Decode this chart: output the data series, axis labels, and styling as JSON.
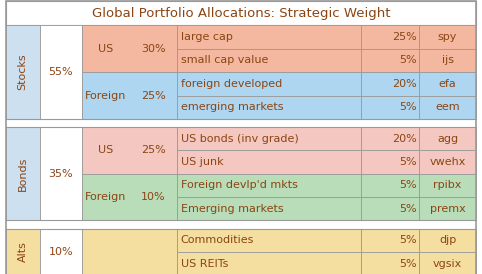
{
  "title": "Global Portfolio Allocations: Strategic Weight",
  "text_color": "#8B4513",
  "border_color": "#999999",
  "font_size": 8.0,
  "title_font_size": 9.5,
  "sections": [
    {
      "label": "Stocks",
      "pct": "55%",
      "label_bg": "#cce0f0",
      "pct_bg": "#ffffff",
      "sub_groups": [
        {
          "label": "US",
          "pct": "30%",
          "bg": "#f4b8a0",
          "rows": [
            {
              "asset": "large cap",
              "weight": "25%",
              "ticker": "spy",
              "row_bg": "#f4b8a0"
            },
            {
              "asset": "small cap value",
              "weight": "5%",
              "ticker": "ijs",
              "row_bg": "#f4b8a0"
            }
          ]
        },
        {
          "label": "Foreign",
          "pct": "25%",
          "bg": "#aed6f1",
          "rows": [
            {
              "asset": "foreign developed",
              "weight": "20%",
              "ticker": "efa",
              "row_bg": "#aed6f1"
            },
            {
              "asset": "emerging markets",
              "weight": "5%",
              "ticker": "eem",
              "row_bg": "#aed6f1"
            }
          ]
        }
      ]
    },
    {
      "label": "Bonds",
      "pct": "35%",
      "label_bg": "#cce0f0",
      "pct_bg": "#ffffff",
      "sub_groups": [
        {
          "label": "US",
          "pct": "25%",
          "bg": "#f4c8c0",
          "rows": [
            {
              "asset": "US bonds (inv grade)",
              "weight": "20%",
              "ticker": "agg",
              "row_bg": "#f4c8c0"
            },
            {
              "asset": "US junk",
              "weight": "5%",
              "ticker": "vwehx",
              "row_bg": "#f4c8c0"
            }
          ]
        },
        {
          "label": "Foreign",
          "pct": "10%",
          "bg": "#b8ddb8",
          "rows": [
            {
              "asset": "Foreign devlp'd mkts",
              "weight": "5%",
              "ticker": "rpibx",
              "row_bg": "#b8ddb8"
            },
            {
              "asset": "Emerging markets",
              "weight": "5%",
              "ticker": "premx",
              "row_bg": "#b8ddb8"
            }
          ]
        }
      ]
    },
    {
      "label": "Alts",
      "pct": "10%",
      "label_bg": "#f5dfa0",
      "pct_bg": "#ffffff",
      "sub_groups": [
        {
          "label": "",
          "pct": "",
          "bg": "#f5dfa0",
          "rows": [
            {
              "asset": "Commodities",
              "weight": "5%",
              "ticker": "djp",
              "row_bg": "#f5dfa0"
            },
            {
              "asset": "US REITs",
              "weight": "5%",
              "ticker": "vgsix",
              "row_bg": "#f5dfa0"
            }
          ]
        }
      ]
    }
  ]
}
